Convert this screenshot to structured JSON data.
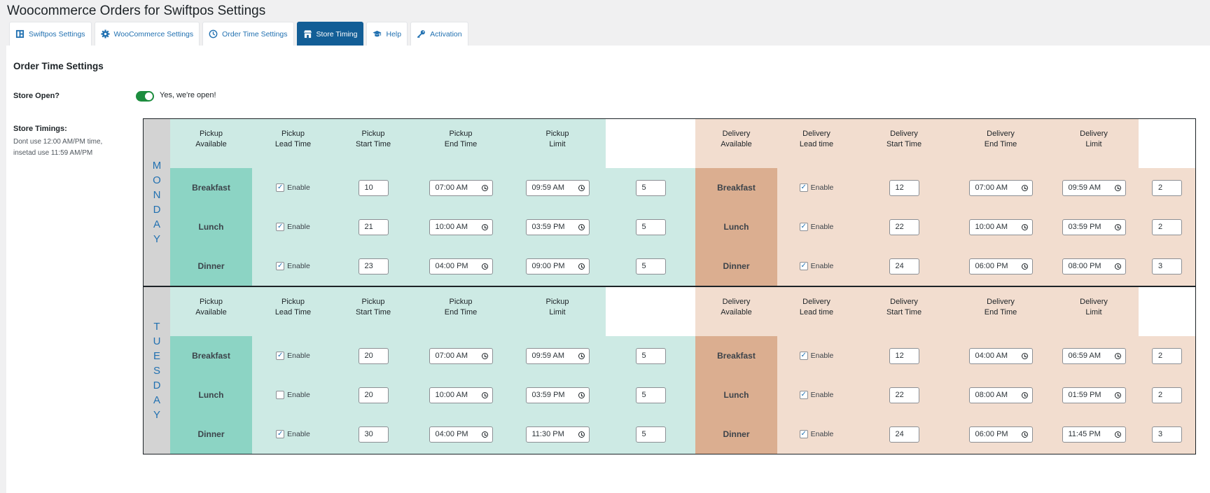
{
  "page_title": "Woocommerce Orders for Swiftpos Settings",
  "tabs": [
    {
      "label": "Swiftpos Settings",
      "icon": "dashboard-icon",
      "active": false
    },
    {
      "label": "WooCommerce Settings",
      "icon": "gear-icon",
      "active": false
    },
    {
      "label": "Order Time Settings",
      "icon": "clock-icon",
      "active": false
    },
    {
      "label": "Store Timing",
      "icon": "store-icon",
      "active": true
    },
    {
      "label": "Help",
      "icon": "graduation-cap-icon",
      "active": false
    },
    {
      "label": "Activation",
      "icon": "key-icon",
      "active": false
    }
  ],
  "section_title": "Order Time Settings",
  "store_open": {
    "label": "Store Open?",
    "enabled": true,
    "text": "Yes, we're open!"
  },
  "store_timings": {
    "label": "Store Timings:",
    "note_line1": "Dont use 12:00 AM/PM time,",
    "note_line2": "insetad use 11:59 AM/PM"
  },
  "headers": {
    "pickup_available": [
      "Pickup",
      "Available"
    ],
    "pickup_lead": [
      "Pickup",
      "Lead Time"
    ],
    "pickup_start": [
      "Pickup",
      "Start Time"
    ],
    "pickup_end": [
      "Pickup",
      "End Time"
    ],
    "pickup_limit": [
      "Pickup",
      "Limit"
    ],
    "delivery_available": [
      "Delivery",
      "Available"
    ],
    "delivery_lead": [
      "Delivery",
      "Lead time"
    ],
    "delivery_start": [
      "Delivery",
      "Start Time"
    ],
    "delivery_end": [
      "Delivery",
      "End Time"
    ],
    "delivery_limit": [
      "Delivery",
      "Limit"
    ]
  },
  "enable_label": "Enable",
  "colors": {
    "accent": "#135e96",
    "pickup_meal": "#8cd4c4",
    "pickup_bg": "#cdeae4",
    "delivery_meal": "#dbae90",
    "delivery_bg": "#f2ddcf",
    "day_bg": "#d3d3d3",
    "toggle_on": "#1c8d3e"
  },
  "days": [
    {
      "name": "MONDAY",
      "rows": [
        {
          "meal": "Breakfast",
          "p_avail": true,
          "p_lead": "10",
          "p_start": "07:00 AM",
          "p_end": "09:59 AM",
          "p_limit": "5",
          "d_meal": "Breakfast",
          "d_avail": true,
          "d_lead": "12",
          "d_start": "07:00 AM",
          "d_end": "09:59 AM",
          "d_limit": "2"
        },
        {
          "meal": "Lunch",
          "p_avail": true,
          "p_lead": "21",
          "p_start": "10:00 AM",
          "p_end": "03:59 PM",
          "p_limit": "5",
          "d_meal": "Lunch",
          "d_avail": true,
          "d_lead": "22",
          "d_start": "10:00 AM",
          "d_end": "03:59 PM",
          "d_limit": "2"
        },
        {
          "meal": "Dinner",
          "p_avail": true,
          "p_lead": "23",
          "p_start": "04:00 PM",
          "p_end": "09:00 PM",
          "p_limit": "5",
          "d_meal": "Dinner",
          "d_avail": true,
          "d_lead": "24",
          "d_start": "06:00 PM",
          "d_end": "08:00 PM",
          "d_limit": "3"
        }
      ]
    },
    {
      "name": "TUESDAY",
      "rows": [
        {
          "meal": "Breakfast",
          "p_avail": true,
          "p_lead": "20",
          "p_start": "07:00 AM",
          "p_end": "09:59 AM",
          "p_limit": "5",
          "d_meal": "Breakfast",
          "d_avail": true,
          "d_lead": "12",
          "d_start": "04:00 AM",
          "d_end": "06:59 AM",
          "d_limit": "2"
        },
        {
          "meal": "Lunch",
          "p_avail": false,
          "p_lead": "20",
          "p_start": "10:00 AM",
          "p_end": "03:59 PM",
          "p_limit": "5",
          "d_meal": "Lunch",
          "d_avail": true,
          "d_lead": "22",
          "d_start": "08:00 AM",
          "d_end": "01:59 PM",
          "d_limit": "2"
        },
        {
          "meal": "Dinner",
          "p_avail": true,
          "p_lead": "30",
          "p_start": "04:00 PM",
          "p_end": "11:30 PM",
          "p_limit": "5",
          "d_meal": "Dinner",
          "d_avail": true,
          "d_lead": "24",
          "d_start": "06:00 PM",
          "d_end": "11:45 PM",
          "d_limit": "3"
        }
      ]
    }
  ]
}
